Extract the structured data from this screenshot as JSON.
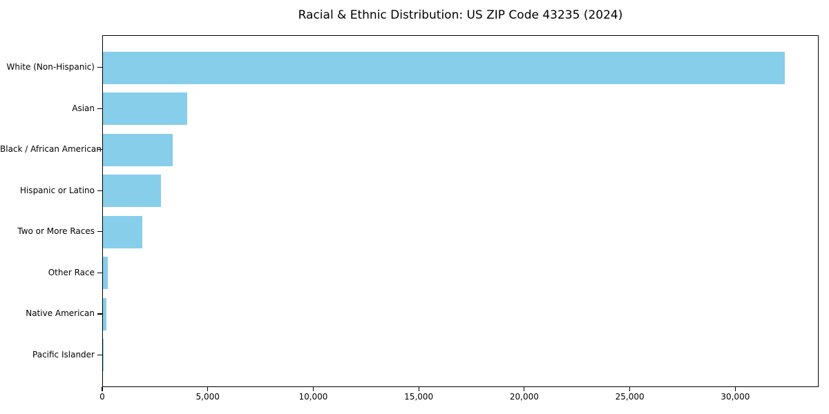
{
  "chart_data": {
    "type": "bar",
    "orientation": "horizontal",
    "title": "Racial & Ethnic Distribution: US ZIP Code 43235 (2024)",
    "xlabel": "",
    "ylabel": "",
    "categories": [
      "White (Non-Hispanic)",
      "Asian",
      "Black / African American",
      "Hispanic or Latino",
      "Two or More Races",
      "Other Race",
      "Native American",
      "Pacific Islander"
    ],
    "values": [
      32360,
      4000,
      3320,
      2770,
      1880,
      230,
      180,
      20
    ],
    "xlim": [
      0,
      33950
    ],
    "x_ticks": [
      0,
      5000,
      10000,
      15000,
      20000,
      25000,
      30000
    ],
    "x_tick_labels": [
      "0",
      "5,000",
      "10,000",
      "15,000",
      "20,000",
      "25,000",
      "30,000"
    ],
    "bar_color": "#87CEEB",
    "grid": false,
    "legend": null
  }
}
